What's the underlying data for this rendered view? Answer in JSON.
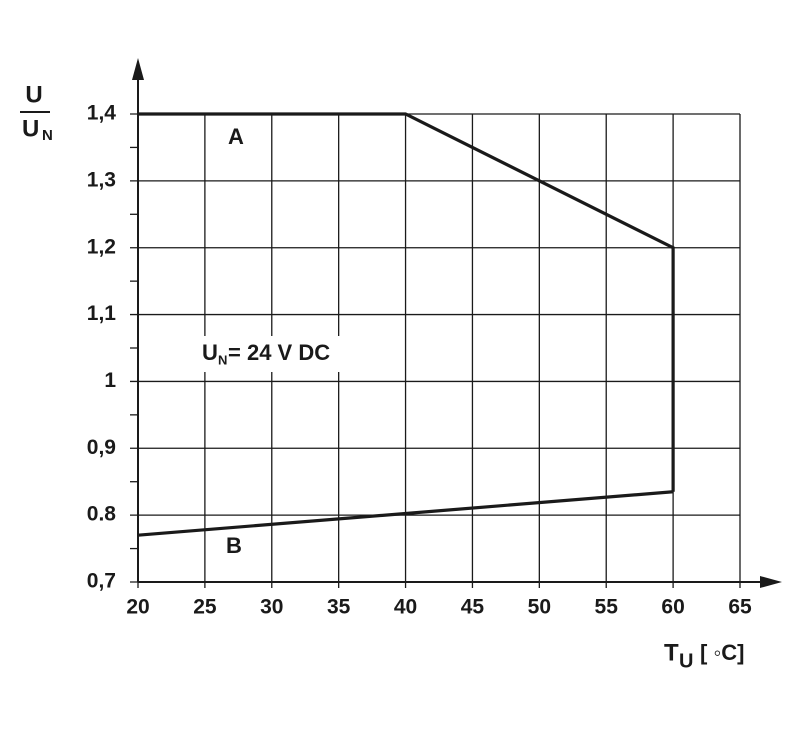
{
  "chart_data": {
    "type": "line",
    "y_label": {
      "numerator": "U",
      "denominator": "U",
      "denominator_sub": "N"
    },
    "x_label": {
      "main": "T",
      "sub": "U",
      "unit": "[ ◦C]"
    },
    "annotations": [
      {
        "text": "A"
      },
      {
        "text": "B"
      },
      {
        "main": "U",
        "sub": "N",
        "rest": "= 24 V DC"
      }
    ],
    "series": [
      {
        "name": "A",
        "color": "#1a1a1a",
        "x": [
          20,
          40,
          60,
          60
        ],
        "values": [
          1.4,
          1.4,
          1.2,
          0.835
        ]
      },
      {
        "name": "B",
        "color": "#1a1a1a",
        "x": [
          20,
          60
        ],
        "values": [
          0.77,
          0.835
        ]
      }
    ],
    "xlim": [
      20,
      65
    ],
    "xticks": [
      20,
      25,
      30,
      35,
      40,
      45,
      50,
      55,
      60,
      65
    ],
    "ylim": [
      0.7,
      1.4
    ],
    "yticks": [
      {
        "value": 0.7,
        "label": "0,7"
      },
      {
        "value": 0.8,
        "label": "0.8"
      },
      {
        "value": 0.9,
        "label": "0,9"
      },
      1,
      {
        "value": 1.1,
        "label": "1,1"
      },
      {
        "value": 1.2,
        "label": "1,2"
      },
      {
        "value": 1.3,
        "label": "1,3"
      },
      {
        "value": 1.4,
        "label": "1,4"
      }
    ],
    "yminorticks": [
      0.75,
      0.85,
      0.95,
      1.05,
      1.15,
      1.25,
      1.35
    ],
    "grid": true
  }
}
